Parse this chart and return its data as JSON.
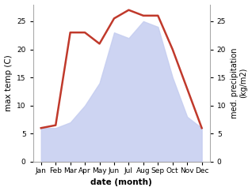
{
  "months": [
    "Jan",
    "Feb",
    "Mar",
    "Apr",
    "May",
    "Jun",
    "Jul",
    "Aug",
    "Sep",
    "Oct",
    "Nov",
    "Dec"
  ],
  "temperature": [
    6,
    6.5,
    23,
    23,
    21,
    25.5,
    27,
    26,
    26,
    20,
    13,
    6
  ],
  "precipitation": [
    6,
    6,
    7,
    10,
    14,
    23,
    22,
    25,
    24,
    15,
    8,
    6
  ],
  "temp_color": "#c0392b",
  "precip_color": "#c5cdf0",
  "temp_ylim": [
    0,
    28
  ],
  "precip_ylim": [
    0,
    28
  ],
  "temp_yticks": [
    0,
    5,
    10,
    15,
    20,
    25
  ],
  "precip_yticks": [
    0,
    5,
    10,
    15,
    20,
    25
  ],
  "ylabel_left": "max temp (C)",
  "ylabel_right": "med. precipitation\n(kg/m2)",
  "xlabel": "date (month)",
  "background_color": "#ffffff"
}
